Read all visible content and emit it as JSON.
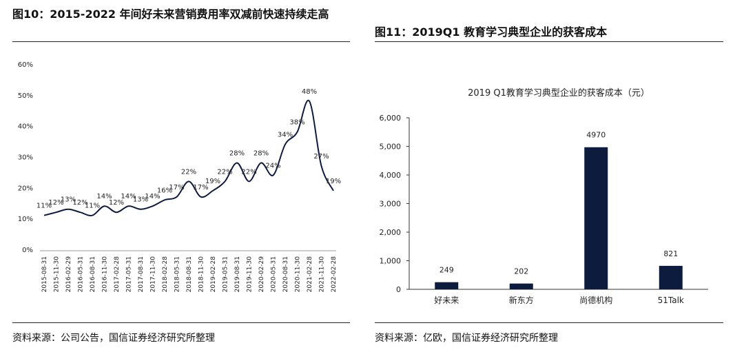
{
  "left": {
    "title": "图10：2015-2022 年间好未来营销费用率双减前快速持续走高",
    "source": "资料来源：公司公告，国信证券经济研究所整理"
  },
  "right": {
    "title": "图11：2019Q1 教育学习典型企业的获客成本",
    "source": "资料来源：亿欧，国信证券经济研究所整理"
  },
  "chart_data": [
    {
      "type": "line",
      "title": "",
      "xlabel": "",
      "ylabel": "",
      "x": [
        "2015-08-31",
        "2015-11-30",
        "2016-02-29",
        "2016-05-31",
        "2016-08-31",
        "2016-11-30",
        "2017-02-28",
        "2017-05-31",
        "2017-08-31",
        "2017-11-30",
        "2018-02-28",
        "2018-05-31",
        "2018-08-31",
        "2018-11-30",
        "2019-02-28",
        "2019-05-31",
        "2019-08-31",
        "2019-11-30",
        "2020-02-29",
        "2020-05-31",
        "2020-08-31",
        "2020-11-30",
        "2021-02-28",
        "2021-11-30",
        "2022-02-28"
      ],
      "values": [
        11,
        12,
        13,
        12,
        11,
        14,
        12,
        14,
        13,
        14,
        16,
        17,
        22,
        17,
        19,
        22,
        28,
        22,
        28,
        24,
        34,
        38,
        48,
        27,
        19
      ],
      "labels": [
        "11%",
        "12%",
        "13%",
        "12%",
        "11%",
        "14%",
        "12%",
        "14%",
        "13%",
        "14%",
        "16%",
        "17%",
        "22%",
        "17%",
        "19%",
        "22%",
        "28%",
        "22%",
        "28%",
        "24%",
        "34%",
        "38%",
        "48%",
        "27%",
        "19%"
      ],
      "ylim": [
        0,
        60
      ],
      "yticks": [
        "0%",
        "10%",
        "20%",
        "30%",
        "40%",
        "50%",
        "60%"
      ],
      "grid": false
    },
    {
      "type": "bar",
      "title": "2019 Q1教育学习典型企业的获客成本（元）",
      "xlabel": "",
      "ylabel": "",
      "categories": [
        "好未来",
        "新东方",
        "尚德机构",
        "51Talk"
      ],
      "values": [
        249,
        202,
        4970,
        821
      ],
      "labels": [
        "249",
        "202",
        "4970",
        "821"
      ],
      "ylim": [
        0,
        6000
      ],
      "yticks": [
        "0",
        "1,000",
        "2,000",
        "3,000",
        "4,000",
        "5,000",
        "6,000"
      ],
      "bar_color": "#0d1b3e",
      "grid": false
    }
  ]
}
